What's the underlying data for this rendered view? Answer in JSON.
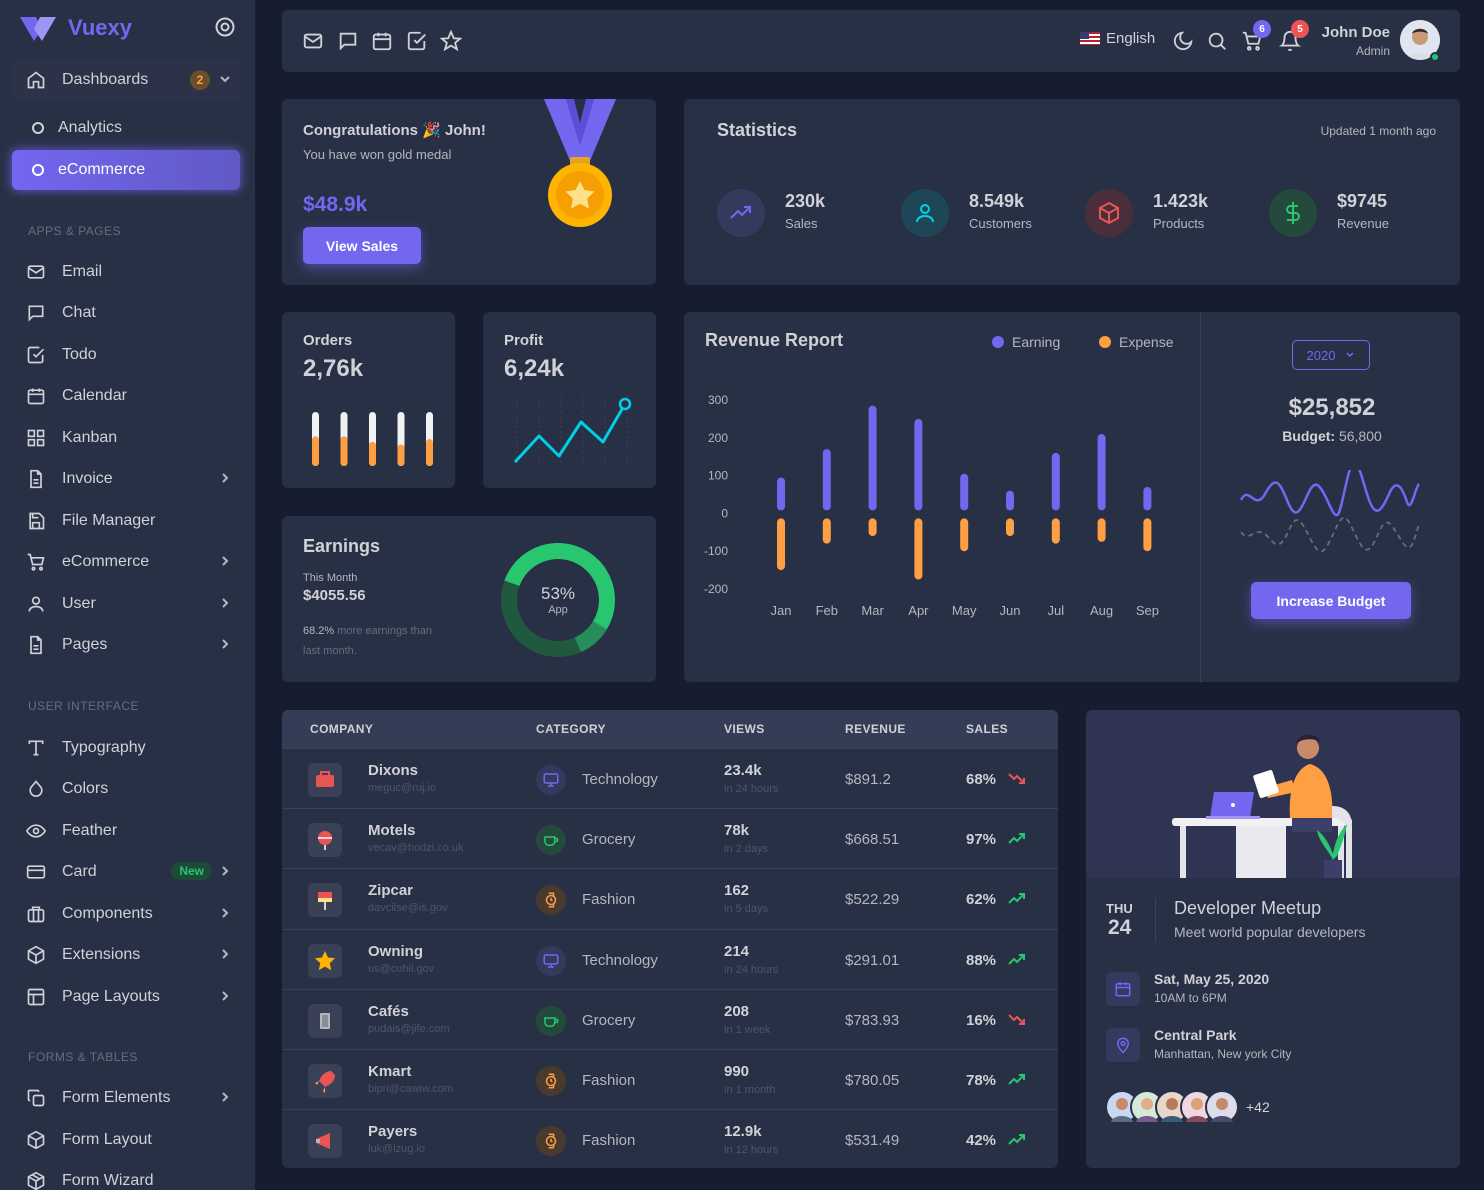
{
  "brand": {
    "name": "Vuexy"
  },
  "sidebar": {
    "dashboards": {
      "label": "Dashboards",
      "badge": "2"
    },
    "dash_items": [
      {
        "label": "Analytics"
      },
      {
        "label": "eCommerce"
      }
    ],
    "sections": {
      "apps": "APPS & PAGES",
      "ui": "USER INTERFACE",
      "forms": "FORMS & TABLES"
    },
    "apps": [
      {
        "label": "Email",
        "icon": "mail-icon"
      },
      {
        "label": "Chat",
        "icon": "chat-icon"
      },
      {
        "label": "Todo",
        "icon": "check-square-icon"
      },
      {
        "label": "Calendar",
        "icon": "calendar-icon"
      },
      {
        "label": "Kanban",
        "icon": "grid-icon"
      },
      {
        "label": "Invoice",
        "icon": "file-icon"
      },
      {
        "label": "File Manager",
        "icon": "save-icon"
      },
      {
        "label": "eCommerce",
        "icon": "cart-icon"
      },
      {
        "label": "User",
        "icon": "user-icon"
      },
      {
        "label": "Pages",
        "icon": "file-icon"
      }
    ],
    "ui": [
      {
        "label": "Typography",
        "icon": "type-icon"
      },
      {
        "label": "Colors",
        "icon": "droplet-icon"
      },
      {
        "label": "Feather",
        "icon": "eye-icon"
      },
      {
        "label": "Card",
        "icon": "credit-card-icon",
        "badge": "New"
      },
      {
        "label": "Components",
        "icon": "briefcase-icon"
      },
      {
        "label": "Extensions",
        "icon": "box-icon"
      },
      {
        "label": "Page Layouts",
        "icon": "layout-icon"
      }
    ],
    "forms": [
      {
        "label": "Form Elements",
        "icon": "copy-icon"
      },
      {
        "label": "Form Layout",
        "icon": "box-icon"
      },
      {
        "label": "Form Wizard",
        "icon": "package-icon"
      }
    ]
  },
  "navbar": {
    "language": "English",
    "cart_count": "6",
    "notif_count": "5",
    "user_name": "John Doe",
    "user_role": "Admin"
  },
  "congrats": {
    "title": "Congratulations 🎉 John!",
    "subtitle": "You have won gold medal",
    "amount": "$48.9k",
    "button": "View Sales"
  },
  "statistics": {
    "title": "Statistics",
    "updated": "Updated 1 month ago",
    "items": [
      {
        "value": "230k",
        "label": "Sales"
      },
      {
        "value": "8.549k",
        "label": "Customers"
      },
      {
        "value": "1.423k",
        "label": "Products"
      },
      {
        "value": "$9745",
        "label": "Revenue"
      }
    ]
  },
  "orders": {
    "title": "Orders",
    "value": "2,76k",
    "bar_fills": [
      0.55,
      0.55,
      0.45,
      0.4,
      0.5
    ]
  },
  "profit": {
    "title": "Profit",
    "value": "6,24k"
  },
  "earnings": {
    "title": "Earnings",
    "month_label": "This Month",
    "amount": "$4055.56",
    "note_pct": "68.2%",
    "note_text": " more earnings than",
    "note_text2": "last month.",
    "donut_pct": "53%",
    "donut_label": "App",
    "donut_value": 0.53
  },
  "revenue_report": {
    "title": "Revenue Report",
    "legend": [
      "Earning",
      "Expense"
    ],
    "year": "2020",
    "total": "$25,852",
    "budget_label": "Budget:",
    "budget_value": "56,800",
    "button": "Increase Budget"
  },
  "chart_data": {
    "type": "bar",
    "categories": [
      "Jan",
      "Feb",
      "Mar",
      "Apr",
      "May",
      "Jun",
      "Jul",
      "Aug",
      "Sep"
    ],
    "series": [
      {
        "name": "Earning",
        "values": [
          95,
          170,
          285,
          250,
          105,
          60,
          160,
          210,
          70
        ]
      },
      {
        "name": "Expense",
        "values": [
          -150,
          -80,
          -60,
          -175,
          -100,
          -60,
          -80,
          -75,
          -100
        ]
      }
    ],
    "yticks": [
      300,
      200,
      100,
      0,
      -100,
      -200
    ],
    "ylim": [
      -200,
      300
    ],
    "colors": [
      "#7367f0",
      "#ff9f43"
    ]
  },
  "table": {
    "headers": [
      "COMPANY",
      "CATEGORY",
      "VIEWS",
      "REVENUE",
      "SALES"
    ],
    "rows": [
      {
        "company": "Dixons",
        "email": "meguc@ruj.io",
        "category": "Technology",
        "views": "23.4k",
        "period": "in 24 hours",
        "revenue": "$891.2",
        "sales": "68%",
        "trend": "down"
      },
      {
        "company": "Motels",
        "email": "vecav@hodzi.co.uk",
        "category": "Grocery",
        "views": "78k",
        "period": "in 2 days",
        "revenue": "$668.51",
        "sales": "97%",
        "trend": "up"
      },
      {
        "company": "Zipcar",
        "email": "davcilse@is.gov",
        "category": "Fashion",
        "views": "162",
        "period": "in 5 days",
        "revenue": "$522.29",
        "sales": "62%",
        "trend": "up"
      },
      {
        "company": "Owning",
        "email": "us@cuhil.gov",
        "category": "Technology",
        "views": "214",
        "period": "in 24 hours",
        "revenue": "$291.01",
        "sales": "88%",
        "trend": "up"
      },
      {
        "company": "Cafés",
        "email": "pudais@jife.com",
        "category": "Grocery",
        "views": "208",
        "period": "in 1 week",
        "revenue": "$783.93",
        "sales": "16%",
        "trend": "down"
      },
      {
        "company": "Kmart",
        "email": "bipri@cawiw.com",
        "category": "Fashion",
        "views": "990",
        "period": "in 1 month",
        "revenue": "$780.05",
        "sales": "78%",
        "trend": "up"
      },
      {
        "company": "Payers",
        "email": "luk@izug.io",
        "category": "Fashion",
        "views": "12.9k",
        "period": "in 12 hours",
        "revenue": "$531.49",
        "sales": "42%",
        "trend": "up"
      }
    ]
  },
  "meetup": {
    "day": "THU",
    "date": "24",
    "title": "Developer Meetup",
    "subtitle": "Meet world popular developers",
    "when": "Sat, May 25, 2020",
    "when_time": "10AM to 6PM",
    "where": "Central Park",
    "where_detail": "Manhattan, New york City",
    "more": "+42"
  }
}
